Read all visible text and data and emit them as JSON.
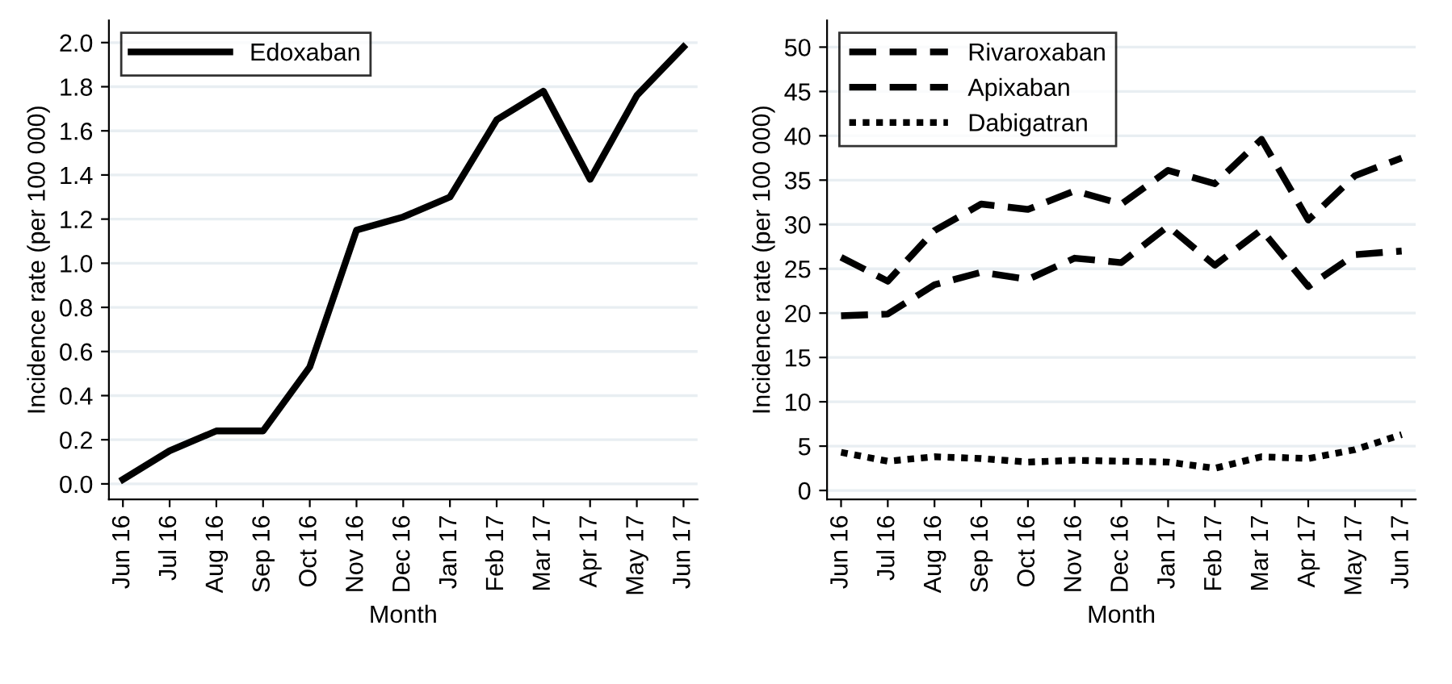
{
  "chart_data": [
    {
      "type": "line",
      "xlabel": "Month",
      "ylabel": "Incidence rate (per 100 000)",
      "categories": [
        "Jun 16",
        "Jul 16",
        "Aug 16",
        "Sep 16",
        "Oct 16",
        "Nov 16",
        "Dec 16",
        "Jan 17",
        "Feb 17",
        "Mar 17",
        "Apr 17",
        "May 17",
        "Jun 17"
      ],
      "series": [
        {
          "name": "Edoxaban",
          "color": "#000000",
          "line_style": "solid",
          "values": [
            0.02,
            0.15,
            0.24,
            0.24,
            0.53,
            1.15,
            1.21,
            1.3,
            1.65,
            1.78,
            1.38,
            1.76,
            1.98
          ]
        }
      ],
      "ylim": [
        -0.07,
        2.1
      ],
      "yticks": [
        {
          "value": 0,
          "label": "0.0"
        },
        0.2,
        0.4,
        0.6,
        0.8,
        {
          "value": 1,
          "label": "1.0"
        },
        1.2,
        1.4,
        1.6,
        1.8,
        {
          "value": 2,
          "label": "2.0"
        }
      ],
      "grid": "y",
      "legend": "top left"
    },
    {
      "type": "line",
      "xlabel": "Month",
      "ylabel": "Incidence rate (per 100 000)",
      "categories": [
        "Jun 16",
        "Jul 16",
        "Aug 16",
        "Sep 16",
        "Oct 16",
        "Nov 16",
        "Dec 16",
        "Jan 17",
        "Feb 17",
        "Mar 17",
        "Apr 17",
        "May 17",
        "Jun 17"
      ],
      "series": [
        {
          "name": "Rivaroxaban",
          "color": "#000000",
          "line_style": "dashed",
          "values": [
            26.3,
            23.6,
            29.3,
            32.3,
            31.7,
            33.8,
            32.3,
            36.1,
            34.6,
            39.6,
            30.5,
            35.5,
            37.5
          ]
        },
        {
          "name": "Apixaban",
          "color": "#000000",
          "line_style": "dashed",
          "values": [
            19.7,
            19.9,
            23.2,
            24.6,
            23.8,
            26.2,
            25.7,
            29.8,
            25.4,
            29.4,
            23.0,
            26.6,
            27.0
          ]
        },
        {
          "name": "Dabigatran",
          "color": "#000000",
          "line_style": "dotted",
          "values": [
            4.3,
            3.3,
            3.8,
            3.6,
            3.2,
            3.4,
            3.3,
            3.2,
            2.5,
            3.8,
            3.6,
            4.6,
            6.3
          ]
        }
      ],
      "ylim": [
        -1,
        53
      ],
      "yticks": [
        0,
        5,
        10,
        15,
        20,
        25,
        30,
        35,
        40,
        45,
        50
      ],
      "grid": "y",
      "legend": "top left"
    }
  ]
}
